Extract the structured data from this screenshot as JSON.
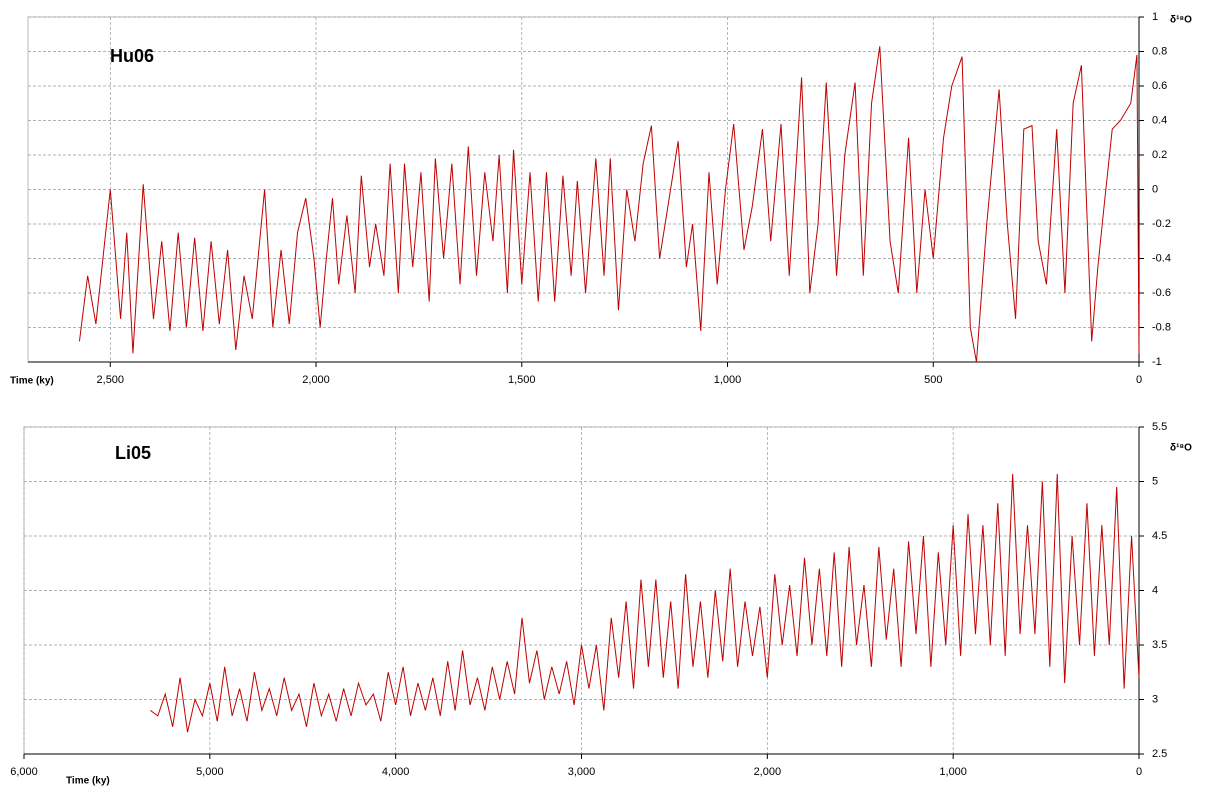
{
  "chart_data": [
    {
      "type": "line",
      "title": "Hu06",
      "xlabel": "Time (ky)",
      "ylabel": "δ¹⁸O",
      "color": "#c00000",
      "grid": true,
      "xlim": [
        2700,
        0
      ],
      "ylim": [
        -1,
        1
      ],
      "xticks": [
        {
          "value": 2500,
          "label": "2,500"
        },
        {
          "value": 2000,
          "label": "2,000"
        },
        {
          "value": 1500,
          "label": "1,500"
        },
        {
          "value": 1000,
          "label": "1,000"
        },
        500,
        0
      ],
      "yticks": [
        1,
        0.8,
        0.6,
        0.4,
        0.2,
        0,
        -0.2,
        -0.4,
        -0.6,
        -0.8,
        -1
      ],
      "x": [
        2575,
        2555,
        2535,
        2500,
        2475,
        2460,
        2445,
        2420,
        2395,
        2375,
        2355,
        2335,
        2315,
        2295,
        2275,
        2255,
        2235,
        2215,
        2195,
        2175,
        2155,
        2125,
        2105,
        2085,
        2065,
        2045,
        2025,
        2005,
        1990,
        1975,
        1960,
        1945,
        1925,
        1905,
        1890,
        1870,
        1855,
        1835,
        1820,
        1800,
        1785,
        1765,
        1745,
        1725,
        1710,
        1690,
        1670,
        1650,
        1630,
        1610,
        1590,
        1570,
        1555,
        1535,
        1520,
        1500,
        1480,
        1460,
        1440,
        1420,
        1400,
        1380,
        1365,
        1345,
        1320,
        1300,
        1285,
        1265,
        1245,
        1225,
        1205,
        1185,
        1165,
        1145,
        1120,
        1100,
        1085,
        1065,
        1045,
        1025,
        1005,
        985,
        960,
        940,
        915,
        895,
        870,
        850,
        820,
        800,
        780,
        760,
        735,
        715,
        690,
        670,
        650,
        630,
        605,
        585,
        560,
        540,
        520,
        500,
        475,
        455,
        430,
        410,
        395,
        370,
        340,
        320,
        300,
        280,
        260,
        245,
        225,
        200,
        180,
        160,
        140,
        115,
        100,
        85,
        65,
        45,
        20,
        5,
        0
      ],
      "values": [
        -0.88,
        -0.5,
        -0.78,
        0.0,
        -0.75,
        -0.25,
        -0.95,
        0.03,
        -0.75,
        -0.3,
        -0.82,
        -0.25,
        -0.8,
        -0.28,
        -0.82,
        -0.3,
        -0.78,
        -0.35,
        -0.93,
        -0.5,
        -0.75,
        0.0,
        -0.8,
        -0.35,
        -0.78,
        -0.25,
        -0.05,
        -0.4,
        -0.8,
        -0.4,
        -0.05,
        -0.55,
        -0.15,
        -0.6,
        0.08,
        -0.45,
        -0.2,
        -0.5,
        0.15,
        -0.6,
        0.15,
        -0.45,
        0.1,
        -0.65,
        0.18,
        -0.4,
        0.15,
        -0.55,
        0.25,
        -0.5,
        0.1,
        -0.3,
        0.2,
        -0.6,
        0.23,
        -0.55,
        0.1,
        -0.65,
        0.1,
        -0.65,
        0.08,
        -0.5,
        0.05,
        -0.6,
        0.18,
        -0.5,
        0.18,
        -0.7,
        0.0,
        -0.3,
        0.15,
        0.37,
        -0.4,
        -0.1,
        0.28,
        -0.45,
        -0.2,
        -0.82,
        0.1,
        -0.55,
        0.0,
        0.38,
        -0.35,
        -0.1,
        0.35,
        -0.3,
        0.38,
        -0.5,
        0.65,
        -0.6,
        -0.2,
        0.62,
        -0.5,
        0.2,
        0.62,
        -0.5,
        0.5,
        0.83,
        -0.3,
        -0.6,
        0.3,
        -0.6,
        0.0,
        -0.4,
        0.3,
        0.6,
        0.77,
        -0.8,
        -1.0,
        -0.2,
        0.58,
        -0.2,
        -0.75,
        0.35,
        0.37,
        -0.3,
        -0.55,
        0.35,
        -0.6,
        0.5,
        0.72,
        -0.88,
        -0.45,
        -0.1,
        0.35,
        0.4,
        0.5,
        0.78,
        -0.95
      ]
    },
    {
      "type": "line",
      "title": "Li05",
      "xlabel": "Time (ky)",
      "ylabel": "δ¹⁸O",
      "color": "#c00000",
      "grid": true,
      "xlim": [
        6000,
        0
      ],
      "ylim": [
        2.5,
        5.5
      ],
      "xticks": [
        {
          "value": 6000,
          "label": "6,000"
        },
        {
          "value": 5000,
          "label": "5,000"
        },
        {
          "value": 4000,
          "label": "4,000"
        },
        {
          "value": 3000,
          "label": "3,000"
        },
        {
          "value": 2000,
          "label": "2,000"
        },
        {
          "value": 1000,
          "label": "1,000"
        },
        0
      ],
      "yticks": [
        5.5,
        5,
        4.5,
        4,
        3.5,
        3,
        2.5
      ],
      "x": [
        5320,
        5280,
        5240,
        5200,
        5160,
        5120,
        5080,
        5040,
        5000,
        4960,
        4920,
        4880,
        4840,
        4800,
        4760,
        4720,
        4680,
        4640,
        4600,
        4560,
        4520,
        4480,
        4440,
        4400,
        4360,
        4320,
        4280,
        4240,
        4200,
        4160,
        4120,
        4080,
        4040,
        4000,
        3960,
        3920,
        3880,
        3840,
        3800,
        3760,
        3720,
        3680,
        3640,
        3600,
        3560,
        3520,
        3480,
        3440,
        3400,
        3360,
        3320,
        3280,
        3240,
        3200,
        3160,
        3120,
        3080,
        3040,
        3000,
        2960,
        2920,
        2880,
        2840,
        2800,
        2760,
        2720,
        2680,
        2640,
        2600,
        2560,
        2520,
        2480,
        2440,
        2400,
        2360,
        2320,
        2280,
        2240,
        2200,
        2160,
        2120,
        2080,
        2040,
        2000,
        1960,
        1920,
        1880,
        1840,
        1800,
        1760,
        1720,
        1680,
        1640,
        1600,
        1560,
        1520,
        1480,
        1440,
        1400,
        1360,
        1320,
        1280,
        1240,
        1200,
        1160,
        1120,
        1080,
        1040,
        1000,
        960,
        920,
        880,
        840,
        800,
        760,
        720,
        680,
        640,
        600,
        560,
        520,
        480,
        440,
        400,
        360,
        320,
        280,
        240,
        200,
        160,
        120,
        80,
        40,
        0
      ],
      "values": [
        2.9,
        2.85,
        3.05,
        2.75,
        3.2,
        2.7,
        3.0,
        2.85,
        3.15,
        2.8,
        3.3,
        2.85,
        3.1,
        2.8,
        3.25,
        2.9,
        3.1,
        2.85,
        3.2,
        2.9,
        3.05,
        2.75,
        3.15,
        2.85,
        3.05,
        2.8,
        3.1,
        2.85,
        3.15,
        2.95,
        3.05,
        2.8,
        3.25,
        2.95,
        3.3,
        2.85,
        3.15,
        2.9,
        3.2,
        2.85,
        3.35,
        2.9,
        3.45,
        2.95,
        3.2,
        2.9,
        3.3,
        3.0,
        3.35,
        3.05,
        3.75,
        3.15,
        3.45,
        3.0,
        3.3,
        3.05,
        3.35,
        2.95,
        3.5,
        3.1,
        3.5,
        2.9,
        3.75,
        3.2,
        3.9,
        3.1,
        4.1,
        3.3,
        4.1,
        3.2,
        3.9,
        3.1,
        4.15,
        3.3,
        3.9,
        3.2,
        4.0,
        3.35,
        4.2,
        3.3,
        3.9,
        3.4,
        3.85,
        3.2,
        4.15,
        3.5,
        4.05,
        3.4,
        4.3,
        3.5,
        4.2,
        3.4,
        4.35,
        3.3,
        4.4,
        3.5,
        4.05,
        3.3,
        4.4,
        3.55,
        4.2,
        3.3,
        4.45,
        3.6,
        4.5,
        3.3,
        4.35,
        3.5,
        4.6,
        3.4,
        4.7,
        3.6,
        4.6,
        3.5,
        4.8,
        3.4,
        5.07,
        3.6,
        4.6,
        3.6,
        5.0,
        3.3,
        5.07,
        3.15,
        4.5,
        3.5,
        4.8,
        3.4,
        4.6,
        3.5,
        4.95,
        3.1,
        4.5,
        3.2
      ]
    }
  ]
}
